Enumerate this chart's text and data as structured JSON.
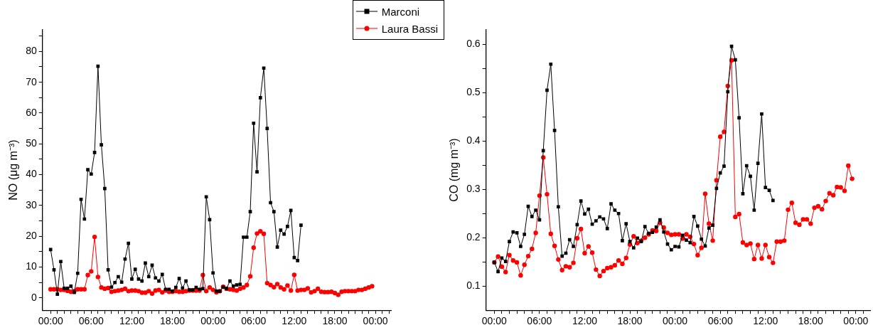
{
  "chart_data": [
    {
      "type": "line",
      "ylabel": "NO (μg m⁻³)",
      "legend": "top right",
      "line_style": "solid",
      "grid": false,
      "xlim": [
        "--03-14T22:48",
        "--03-17T02:18"
      ],
      "ylim": [
        -4,
        87
      ],
      "x": [
        "--03-15T00:00",
        "--03-15T00:30",
        "--03-15T01:00",
        "--03-15T01:30",
        "--03-15T02:00",
        "--03-15T02:30",
        "--03-15T03:00",
        "--03-15T03:30",
        "--03-15T04:00",
        "--03-15T04:30",
        "--03-15T05:00",
        "--03-15T05:30",
        "--03-15T06:00",
        "--03-15T06:30",
        "--03-15T07:00",
        "--03-15T07:30",
        "--03-15T08:00",
        "--03-15T08:30",
        "--03-15T09:00",
        "--03-15T09:30",
        "--03-15T10:00",
        "--03-15T10:30",
        "--03-15T11:00",
        "--03-15T11:30",
        "--03-15T12:00",
        "--03-15T12:30",
        "--03-15T13:00",
        "--03-15T13:30",
        "--03-15T14:00",
        "--03-15T14:30",
        "--03-15T15:00",
        "--03-15T15:30",
        "--03-15T16:00",
        "--03-15T16:30",
        "--03-15T17:00",
        "--03-15T17:30",
        "--03-15T18:00",
        "--03-15T18:30",
        "--03-15T19:00",
        "--03-15T19:30",
        "--03-15T20:00",
        "--03-15T20:30",
        "--03-15T21:00",
        "--03-15T21:30",
        "--03-15T22:00",
        "--03-15T22:30",
        "--03-15T23:00",
        "--03-15T23:30",
        "--03-16T00:00",
        "--03-16T00:30",
        "--03-16T01:00",
        "--03-16T01:30",
        "--03-16T02:00",
        "--03-16T02:30",
        "--03-16T03:00",
        "--03-16T03:30",
        "--03-16T04:00",
        "--03-16T04:30",
        "--03-16T05:00",
        "--03-16T05:30",
        "--03-16T06:00",
        "--03-16T06:30",
        "--03-16T07:00",
        "--03-16T07:30",
        "--03-16T08:00",
        "--03-16T08:30",
        "--03-16T09:00",
        "--03-16T09:30",
        "--03-16T10:00",
        "--03-16T10:30",
        "--03-16T11:00",
        "--03-16T11:30",
        "--03-16T12:00",
        "--03-16T12:30",
        "--03-16T13:00",
        "--03-16T13:30",
        "--03-16T14:00",
        "--03-16T14:30",
        "--03-16T15:00",
        "--03-16T15:30",
        "--03-16T16:00",
        "--03-16T16:30",
        "--03-16T17:00",
        "--03-16T17:30",
        "--03-16T18:00",
        "--03-16T18:30",
        "--03-16T19:00",
        "--03-16T19:30",
        "--03-16T20:00",
        "--03-16T20:30",
        "--03-16T21:00",
        "--03-16T21:30",
        "--03-16T22:00",
        "--03-16T22:30",
        "--03-16T23:00",
        "--03-16T23:30"
      ],
      "xticks": [
        {
          "value": "--03-15T00:00",
          "label": "00:00"
        },
        {
          "value": "--03-15T01:00",
          "label": null
        },
        {
          "value": "--03-15T02:00",
          "label": null
        },
        {
          "value": "--03-15T03:00",
          "label": null
        },
        {
          "value": "--03-15T04:00",
          "label": null
        },
        {
          "value": "--03-15T05:00",
          "label": null
        },
        {
          "value": "--03-15T06:00",
          "label": "06:00"
        },
        {
          "value": "--03-15T07:00",
          "label": null
        },
        {
          "value": "--03-15T08:00",
          "label": null
        },
        {
          "value": "--03-15T09:00",
          "label": null
        },
        {
          "value": "--03-15T10:00",
          "label": null
        },
        {
          "value": "--03-15T11:00",
          "label": null
        },
        {
          "value": "--03-15T12:00",
          "label": "12:00"
        },
        {
          "value": "--03-15T13:00",
          "label": null
        },
        {
          "value": "--03-15T14:00",
          "label": null
        },
        {
          "value": "--03-15T15:00",
          "label": null
        },
        {
          "value": "--03-15T16:00",
          "label": null
        },
        {
          "value": "--03-15T17:00",
          "label": null
        },
        {
          "value": "--03-15T18:00",
          "label": "18:00"
        },
        {
          "value": "--03-15T19:00",
          "label": null
        },
        {
          "value": "--03-15T20:00",
          "label": null
        },
        {
          "value": "--03-15T21:00",
          "label": null
        },
        {
          "value": "--03-15T22:00",
          "label": null
        },
        {
          "value": "--03-15T23:00",
          "label": null
        },
        {
          "value": "--03-16T00:00",
          "label": "00:00"
        },
        {
          "value": "--03-16T01:00",
          "label": null
        },
        {
          "value": "--03-16T02:00",
          "label": null
        },
        {
          "value": "--03-16T03:00",
          "label": null
        },
        {
          "value": "--03-16T04:00",
          "label": null
        },
        {
          "value": "--03-16T05:00",
          "label": null
        },
        {
          "value": "--03-16T06:00",
          "label": "06:00"
        },
        {
          "value": "--03-16T07:00",
          "label": null
        },
        {
          "value": "--03-16T08:00",
          "label": null
        },
        {
          "value": "--03-16T09:00",
          "label": null
        },
        {
          "value": "--03-16T10:00",
          "label": null
        },
        {
          "value": "--03-16T11:00",
          "label": null
        },
        {
          "value": "--03-16T12:00",
          "label": "12:00"
        },
        {
          "value": "--03-16T13:00",
          "label": null
        },
        {
          "value": "--03-16T14:00",
          "label": null
        },
        {
          "value": "--03-16T15:00",
          "label": null
        },
        {
          "value": "--03-16T16:00",
          "label": null
        },
        {
          "value": "--03-16T17:00",
          "label": null
        },
        {
          "value": "--03-16T18:00",
          "label": "18:00"
        },
        {
          "value": "--03-16T19:00",
          "label": null
        },
        {
          "value": "--03-16T20:00",
          "label": null
        },
        {
          "value": "--03-16T21:00",
          "label": null
        },
        {
          "value": "--03-16T22:00",
          "label": null
        },
        {
          "value": "--03-16T23:00",
          "label": null
        },
        {
          "value": "--03-17T00:00",
          "label": "00:00"
        },
        {
          "value": "--03-17T01:00",
          "label": null
        },
        {
          "value": "--03-17T02:00",
          "label": null
        }
      ],
      "yticks": [
        0,
        {
          "value": 5,
          "label": null
        },
        10,
        {
          "value": 15,
          "label": null
        },
        20,
        {
          "value": 25,
          "label": null
        },
        30,
        {
          "value": 35,
          "label": null
        },
        40,
        {
          "value": 45,
          "label": null
        },
        50,
        {
          "value": 55,
          "label": null
        },
        60,
        {
          "value": 65,
          "label": null
        },
        70,
        {
          "value": 75,
          "label": null
        },
        80,
        {
          "value": 85,
          "label": null
        }
      ],
      "series": [
        {
          "name": "Marconi",
          "color": "#000000",
          "marker": "square",
          "values": [
            15.7,
            9.1,
            1.2,
            11.8,
            3.1,
            3.1,
            3.8,
            1.8,
            8,
            32,
            25.6,
            41.6,
            40.2,
            47.2,
            75.2,
            49.7,
            35.5,
            9.1,
            3.5,
            5,
            6.9,
            5.1,
            12.6,
            17.7,
            6.1,
            9.3,
            6.1,
            5.5,
            11.3,
            6.9,
            10.6,
            6.5,
            5.5,
            7.6,
            2.8,
            2.8,
            2.2,
            3.4,
            6.3,
            3.2,
            5.5,
            2.6,
            2.6,
            3.4,
            2.8,
            3,
            32.8,
            25.4,
            8.1,
            2.2,
            2.2,
            3.5,
            3,
            5.5,
            3.8,
            4.2,
            4.4,
            19.7,
            19.7,
            28,
            56.7,
            40.9,
            65,
            74.6,
            55,
            30.9,
            28,
            16.5,
            22,
            20.7,
            23.2,
            28.4,
            13.1,
            12.1,
            23.6,
            null,
            null,
            null,
            null,
            null,
            null,
            null,
            null,
            null,
            null,
            null,
            null,
            null,
            null,
            null,
            null,
            null,
            null,
            null,
            null,
            null
          ]
        },
        {
          "name": "Laura Bassi",
          "color": "#ff0000",
          "marker": "circle",
          "values": [
            2.8,
            2.8,
            2.8,
            2.6,
            2.6,
            2.3,
            2,
            2.2,
            2.8,
            2.8,
            2.8,
            7.4,
            8.6,
            19.8,
            6.8,
            3.4,
            3,
            3.2,
            2,
            2.2,
            2.4,
            2.6,
            3,
            2.2,
            2.4,
            2.4,
            2.2,
            1.7,
            1.7,
            2.2,
            1.4,
            2.4,
            2.6,
            1.8,
            2.4,
            2,
            2,
            2.2,
            2,
            2,
            2.2,
            2.4,
            2.4,
            2.4,
            2.4,
            7.4,
            2.2,
            3.4,
            2.6,
            1.8,
            2.2,
            3.6,
            3,
            2.8,
            2.6,
            2.4,
            3,
            3.4,
            4.2,
            7,
            16.3,
            20.9,
            21.6,
            20.8,
            4.8,
            4.2,
            3.5,
            4.5,
            3.4,
            2.8,
            4,
            2.4,
            7.5,
            2.4,
            2.6,
            2.6,
            3.1,
            1.8,
            2.2,
            3,
            2,
            1.9,
            1.9,
            2,
            1.6,
            1,
            2,
            2.2,
            2.2,
            2.2,
            2.2,
            2.6,
            2.6,
            3,
            3.4,
            3.8
          ]
        }
      ]
    },
    {
      "type": "line",
      "ylabel": "CO (mg m⁻³)",
      "line_style": "solid",
      "grid": false,
      "xlim": [
        "--03-14T22:54",
        "--03-17T01:54"
      ],
      "ylim": [
        0.05,
        0.63
      ],
      "x": [
        "--03-15T00:00",
        "--03-15T00:30",
        "--03-15T01:00",
        "--03-15T01:30",
        "--03-15T02:00",
        "--03-15T02:30",
        "--03-15T03:00",
        "--03-15T03:30",
        "--03-15T04:00",
        "--03-15T04:30",
        "--03-15T05:00",
        "--03-15T05:30",
        "--03-15T06:00",
        "--03-15T06:30",
        "--03-15T07:00",
        "--03-15T07:30",
        "--03-15T08:00",
        "--03-15T08:30",
        "--03-15T09:00",
        "--03-15T09:30",
        "--03-15T10:00",
        "--03-15T10:30",
        "--03-15T11:00",
        "--03-15T11:30",
        "--03-15T12:00",
        "--03-15T12:30",
        "--03-15T13:00",
        "--03-15T13:30",
        "--03-15T14:00",
        "--03-15T14:30",
        "--03-15T15:00",
        "--03-15T15:30",
        "--03-15T16:00",
        "--03-15T16:30",
        "--03-15T17:00",
        "--03-15T17:30",
        "--03-15T18:00",
        "--03-15T18:30",
        "--03-15T19:00",
        "--03-15T19:30",
        "--03-15T20:00",
        "--03-15T20:30",
        "--03-15T21:00",
        "--03-15T21:30",
        "--03-15T22:00",
        "--03-15T22:30",
        "--03-15T23:00",
        "--03-15T23:30",
        "--03-16T00:00",
        "--03-16T00:30",
        "--03-16T01:00",
        "--03-16T01:30",
        "--03-16T02:00",
        "--03-16T02:30",
        "--03-16T03:00",
        "--03-16T03:30",
        "--03-16T04:00",
        "--03-16T04:30",
        "--03-16T05:00",
        "--03-16T05:30",
        "--03-16T06:00",
        "--03-16T06:30",
        "--03-16T07:00",
        "--03-16T07:30",
        "--03-16T08:00",
        "--03-16T08:30",
        "--03-16T09:00",
        "--03-16T09:30",
        "--03-16T10:00",
        "--03-16T10:30",
        "--03-16T11:00",
        "--03-16T11:30",
        "--03-16T12:00",
        "--03-16T12:30",
        "--03-16T13:00",
        "--03-16T13:30",
        "--03-16T14:00",
        "--03-16T14:30",
        "--03-16T15:00",
        "--03-16T15:30",
        "--03-16T16:00",
        "--03-16T16:30",
        "--03-16T17:00",
        "--03-16T17:30",
        "--03-16T18:00",
        "--03-16T18:30",
        "--03-16T19:00",
        "--03-16T19:30",
        "--03-16T20:00",
        "--03-16T20:30",
        "--03-16T21:00",
        "--03-16T21:30",
        "--03-16T22:00",
        "--03-16T22:30",
        "--03-16T23:00",
        "--03-16T23:30"
      ],
      "xticks": [
        {
          "value": "--03-15T00:00",
          "label": "00:00"
        },
        {
          "value": "--03-15T01:00",
          "label": null
        },
        {
          "value": "--03-15T02:00",
          "label": null
        },
        {
          "value": "--03-15T03:00",
          "label": null
        },
        {
          "value": "--03-15T04:00",
          "label": null
        },
        {
          "value": "--03-15T05:00",
          "label": null
        },
        {
          "value": "--03-15T06:00",
          "label": "06:00"
        },
        {
          "value": "--03-15T07:00",
          "label": null
        },
        {
          "value": "--03-15T08:00",
          "label": null
        },
        {
          "value": "--03-15T09:00",
          "label": null
        },
        {
          "value": "--03-15T10:00",
          "label": null
        },
        {
          "value": "--03-15T11:00",
          "label": null
        },
        {
          "value": "--03-15T12:00",
          "label": "12:00"
        },
        {
          "value": "--03-15T13:00",
          "label": null
        },
        {
          "value": "--03-15T14:00",
          "label": null
        },
        {
          "value": "--03-15T15:00",
          "label": null
        },
        {
          "value": "--03-15T16:00",
          "label": null
        },
        {
          "value": "--03-15T17:00",
          "label": null
        },
        {
          "value": "--03-15T18:00",
          "label": "18:00"
        },
        {
          "value": "--03-15T19:00",
          "label": null
        },
        {
          "value": "--03-15T20:00",
          "label": null
        },
        {
          "value": "--03-15T21:00",
          "label": null
        },
        {
          "value": "--03-15T22:00",
          "label": null
        },
        {
          "value": "--03-15T23:00",
          "label": null
        },
        {
          "value": "--03-16T00:00",
          "label": "00:00"
        },
        {
          "value": "--03-16T01:00",
          "label": null
        },
        {
          "value": "--03-16T02:00",
          "label": null
        },
        {
          "value": "--03-16T03:00",
          "label": null
        },
        {
          "value": "--03-16T04:00",
          "label": null
        },
        {
          "value": "--03-16T05:00",
          "label": null
        },
        {
          "value": "--03-16T06:00",
          "label": "06:00"
        },
        {
          "value": "--03-16T07:00",
          "label": null
        },
        {
          "value": "--03-16T08:00",
          "label": null
        },
        {
          "value": "--03-16T09:00",
          "label": null
        },
        {
          "value": "--03-16T10:00",
          "label": null
        },
        {
          "value": "--03-16T11:00",
          "label": null
        },
        {
          "value": "--03-16T12:00",
          "label": "12:00"
        },
        {
          "value": "--03-16T13:00",
          "label": null
        },
        {
          "value": "--03-16T14:00",
          "label": null
        },
        {
          "value": "--03-16T15:00",
          "label": null
        },
        {
          "value": "--03-16T16:00",
          "label": null
        },
        {
          "value": "--03-16T17:00",
          "label": null
        },
        {
          "value": "--03-16T18:00",
          "label": "18:00"
        },
        {
          "value": "--03-16T19:00",
          "label": null
        },
        {
          "value": "--03-16T20:00",
          "label": null
        },
        {
          "value": "--03-16T21:00",
          "label": null
        },
        {
          "value": "--03-16T22:00",
          "label": null
        },
        {
          "value": "--03-16T23:00",
          "label": null
        },
        {
          "value": "--03-17T00:00",
          "label": "00:00"
        },
        {
          "value": "--03-17T01:00",
          "label": null
        }
      ],
      "yticks": [
        0.1,
        {
          "value": 0.15,
          "label": null
        },
        0.2,
        {
          "value": 0.25,
          "label": null
        },
        0.3,
        {
          "value": 0.35,
          "label": null
        },
        0.4,
        {
          "value": 0.45,
          "label": null
        },
        0.5,
        {
          "value": 0.55,
          "label": null
        },
        0.6
      ],
      "series": [
        {
          "color": "#000000",
          "marker": "square",
          "values": [
            0.149,
            0.13,
            0.158,
            0.151,
            0.192,
            0.212,
            0.21,
            0.182,
            0.207,
            0.265,
            0.244,
            0.257,
            0.237,
            0.38,
            0.505,
            0.559,
            0.422,
            0.264,
            0.162,
            0.168,
            0.196,
            0.182,
            0.227,
            0.276,
            0.249,
            0.259,
            0.228,
            0.235,
            0.243,
            0.239,
            0.219,
            0.27,
            0.257,
            0.25,
            0.194,
            0.229,
            0.192,
            0.179,
            0.199,
            0.192,
            0.223,
            0.209,
            0.211,
            0.222,
            0.237,
            0.212,
            0.187,
            0.175,
            0.182,
            0.181,
            0.205,
            0.195,
            0.19,
            0.244,
            0.224,
            0.197,
            0.183,
            0.22,
            0.226,
            0.302,
            0.334,
            0.348,
            0.502,
            0.596,
            0.568,
            0.448,
            0.291,
            0.349,
            0.327,
            0.257,
            0.354,
            0.456,
            0.304,
            0.298,
            0.277,
            null,
            null,
            null,
            null,
            null,
            null,
            null,
            null,
            null,
            null,
            null,
            null,
            null,
            null,
            null,
            null,
            null,
            null,
            null,
            null,
            null
          ]
        },
        {
          "color": "#ff0000",
          "marker": "circle",
          "values": [
            0.149,
            0.161,
            0.14,
            0.129,
            0.164,
            0.153,
            0.149,
            0.122,
            0.144,
            0.162,
            0.177,
            0.21,
            0.287,
            0.366,
            0.29,
            0.208,
            0.183,
            0.155,
            0.133,
            0.141,
            0.139,
            0.148,
            0.199,
            0.218,
            0.168,
            0.182,
            0.169,
            0.134,
            0.121,
            0.131,
            0.137,
            0.139,
            0.143,
            0.153,
            0.146,
            0.158,
            0.186,
            0.203,
            0.189,
            0.194,
            0.2,
            0.207,
            0.215,
            0.214,
            0.231,
            0.221,
            0.21,
            0.206,
            0.207,
            0.207,
            0.198,
            0.207,
            0.202,
            0.187,
            0.164,
            0.179,
            0.291,
            0.229,
            0.194,
            0.319,
            0.409,
            0.419,
            0.514,
            0.567,
            0.243,
            0.249,
            0.19,
            0.185,
            0.188,
            0.156,
            0.185,
            0.157,
            0.185,
            0.16,
            0.148,
            0.192,
            0.192,
            0.194,
            0.258,
            0.272,
            0.231,
            0.227,
            0.238,
            0.238,
            0.229,
            0.262,
            0.265,
            0.259,
            0.276,
            0.292,
            0.288,
            0.305,
            0.304,
            0.297,
            0.349,
            0.322
          ]
        }
      ]
    }
  ]
}
